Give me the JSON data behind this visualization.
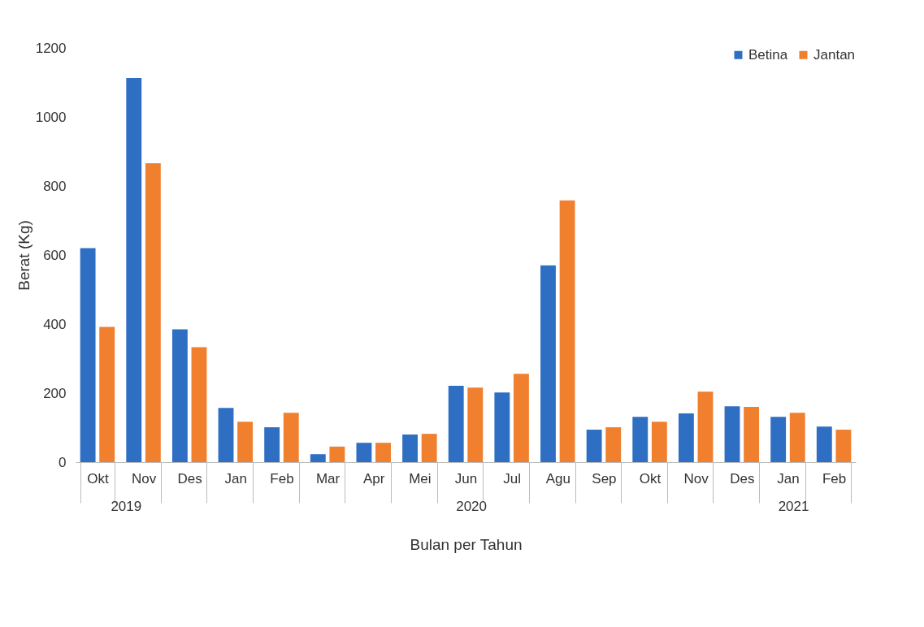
{
  "chart_data": {
    "type": "bar",
    "xlabel": "Bulan per Tahun",
    "ylabel": "Berat (Kg)",
    "categories": [
      "Okt",
      "Nov",
      "Des",
      "Jan",
      "Feb",
      "Mar",
      "Apr",
      "Mei",
      "Jun",
      "Jul",
      "Agu",
      "Sep",
      "Okt",
      "Nov",
      "Des",
      "Jan",
      "Feb"
    ],
    "series": [
      {
        "name": "Betina",
        "color": "#2e6fc4",
        "values": [
          620,
          1113,
          385,
          157,
          101,
          23,
          56,
          80,
          221,
          202,
          570,
          94,
          131,
          141,
          162,
          131,
          103
        ]
      },
      {
        "name": "Jantan",
        "color": "#f07f2e",
        "values": [
          392,
          866,
          333,
          117,
          143,
          45,
          56,
          82,
          216,
          256,
          758,
          101,
          117,
          204,
          160,
          143,
          94
        ]
      }
    ],
    "ylim": [
      0,
      1200
    ],
    "yticks": [
      0,
      200,
      400,
      600,
      800,
      1000,
      1200
    ],
    "grid": false,
    "legend": "top right",
    "annotations": [
      "2019",
      "2020",
      "2021"
    ]
  }
}
